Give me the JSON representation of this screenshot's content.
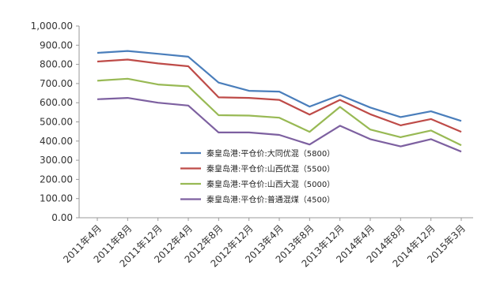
{
  "chart_data": {
    "type": "line",
    "categories": [
      "2011年4月",
      "2011年8月",
      "2011年12月",
      "2012年4月",
      "2012年8月",
      "2012年12月",
      "2013年4月",
      "2013年8月",
      "2013年12月",
      "2014年4月",
      "2014年8月",
      "2014年12月",
      "2015年3月"
    ],
    "y_tick_labels": [
      "0.00",
      "100.00",
      "200.00",
      "300.00",
      "400.00",
      "500.00",
      "600.00",
      "700.00",
      "800.00",
      "900.00",
      "1,000.00"
    ],
    "ylim": [
      0,
      1000
    ],
    "grid": false,
    "legend_position": "center-right",
    "series": [
      {
        "name": "秦皇岛港:平仓价:大同优混（5800）",
        "color": "#4a7ebb",
        "values": [
          860,
          870,
          855,
          840,
          705,
          662,
          658,
          580,
          640,
          575,
          525,
          555,
          505
        ]
      },
      {
        "name": "秦皇岛港:平仓价:山西优混（5500）",
        "color": "#be4b48",
        "values": [
          815,
          825,
          805,
          790,
          628,
          625,
          615,
          538,
          615,
          540,
          482,
          515,
          448
        ]
      },
      {
        "name": "秦皇岛港:平仓价:山西大混（5000）",
        "color": "#98b954",
        "values": [
          715,
          725,
          695,
          685,
          535,
          533,
          522,
          448,
          578,
          460,
          420,
          455,
          378
        ]
      },
      {
        "name": "秦皇岛港:平仓价:普通混煤（4500）",
        "color": "#7d60a0",
        "values": [
          618,
          625,
          600,
          585,
          445,
          445,
          432,
          382,
          480,
          410,
          372,
          410,
          345
        ]
      }
    ]
  }
}
